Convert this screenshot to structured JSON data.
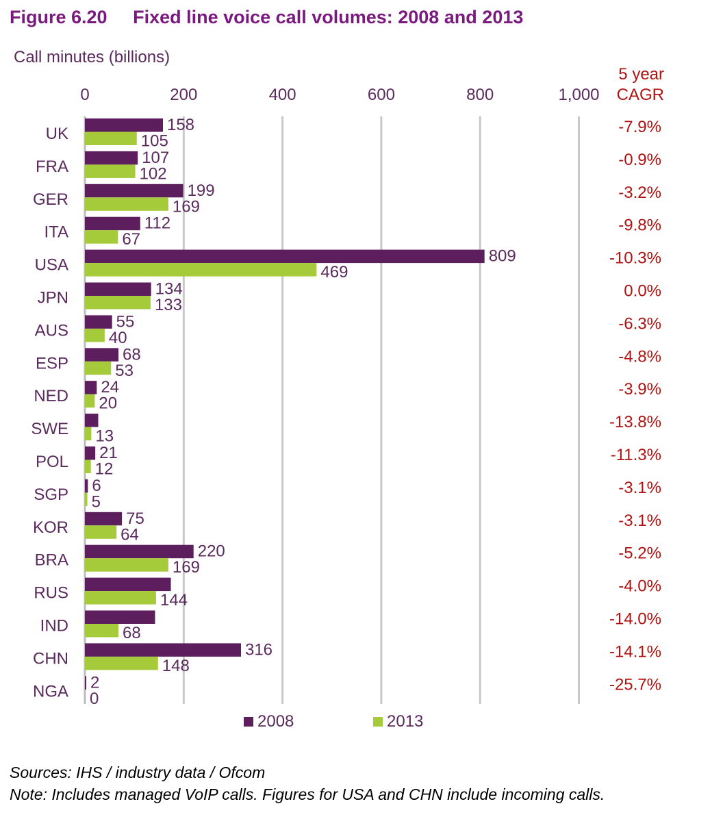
{
  "figure": {
    "number": "Figure 6.20",
    "title": "Fixed line voice call volumes: 2008 and 2013"
  },
  "colors": {
    "title": "#7b1a7e",
    "series_2008": "#5d1e5e",
    "series_2013": "#a6cb3a",
    "axis_text": "#5a2a5c",
    "cagr_text": "#b0120f",
    "grid": "#c8c8c8"
  },
  "cagr_header": {
    "line1": "5 year",
    "line2": "CAGR"
  },
  "chart_data": {
    "type": "bar",
    "orientation": "horizontal",
    "title": "Fixed line voice call volumes: 2008 and 2013",
    "xlabel": "Call minutes (billions)",
    "xlim": [
      0,
      1000
    ],
    "xticks": [
      0,
      200,
      400,
      600,
      800,
      1000
    ],
    "xtick_labels": [
      "0",
      "200",
      "400",
      "600",
      "800",
      "1,000"
    ],
    "grid": true,
    "legend_position": "bottom",
    "categories": [
      "UK",
      "FRA",
      "GER",
      "ITA",
      "USA",
      "JPN",
      "AUS",
      "ESP",
      "NED",
      "SWE",
      "POL",
      "SGP",
      "KOR",
      "BRA",
      "RUS",
      "IND",
      "CHN",
      "NGA"
    ],
    "series": [
      {
        "name": "2008",
        "values": [
          158,
          107,
          199,
          112,
          809,
          134,
          55,
          68,
          24,
          null,
          21,
          6,
          75,
          220,
          null,
          null,
          316,
          2
        ],
        "shown_length": [
          158,
          107,
          199,
          112,
          809,
          134,
          55,
          68,
          24,
          27,
          21,
          6,
          75,
          220,
          174,
          142,
          316,
          2
        ]
      },
      {
        "name": "2013",
        "values": [
          105,
          102,
          169,
          67,
          469,
          133,
          40,
          53,
          20,
          13,
          12,
          5,
          64,
          169,
          144,
          68,
          148,
          0
        ]
      }
    ],
    "cagr": [
      "-7.9%",
      "-0.9%",
      "-3.2%",
      "-9.8%",
      "-10.3%",
      "0.0%",
      "-6.3%",
      "-4.8%",
      "-3.9%",
      "-13.8%",
      "-11.3%",
      "-3.1%",
      "-3.1%",
      "-5.2%",
      "-4.0%",
      "-14.0%",
      "-14.1%",
      "-25.7%"
    ]
  },
  "footer": {
    "sources": "Sources: IHS / industry data / Ofcom",
    "note": "Note: Includes managed VoIP calls. Figures for USA and CHN include incoming calls."
  }
}
